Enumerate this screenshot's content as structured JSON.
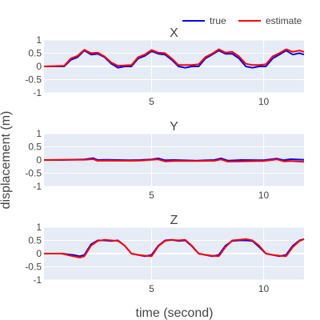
{
  "chart_data": {
    "type": "line",
    "xlabel": "time (second)",
    "ylabel": "displacement (m)",
    "xlim": [
      0.2,
      11.8
    ],
    "xticks": [
      5,
      10
    ],
    "ylim": [
      -1,
      1
    ],
    "yticks": [
      1,
      0.5,
      0,
      -0.5,
      -1
    ],
    "grid": true,
    "legend": {
      "placement": "top-right",
      "entries": [
        {
          "name": "true",
          "color": "#0000ff"
        },
        {
          "name": "estimate",
          "color": "#ff0000"
        }
      ]
    },
    "colors": {
      "true": "#0000ff",
      "estimate": "#ff0000",
      "plot_bg": "#e5ecf6"
    },
    "panels": [
      {
        "title": "X",
        "series": [
          {
            "name": "true",
            "x": [
              0.2,
              1.1,
              1.4,
              1.7,
              2.0,
              2.3,
              2.6,
              2.9,
              3.2,
              3.5,
              3.8,
              4.1,
              4.4,
              4.7,
              5.0,
              5.3,
              5.6,
              5.9,
              6.2,
              6.5,
              6.8,
              7.1,
              7.4,
              7.7,
              8.0,
              8.3,
              8.6,
              8.9,
              9.2,
              9.5,
              9.8,
              10.1,
              10.4,
              10.7,
              11.0,
              11.3,
              11.6,
              11.8
            ],
            "y": [
              0,
              0,
              0.25,
              0.35,
              0.6,
              0.45,
              0.48,
              0.35,
              0.1,
              -0.05,
              0,
              0,
              0.3,
              0.4,
              0.58,
              0.48,
              0.45,
              0.25,
              0,
              -0.05,
              0,
              0,
              0.3,
              0.45,
              0.6,
              0.48,
              0.48,
              0.3,
              0,
              -0.05,
              0,
              0,
              0.3,
              0.45,
              0.6,
              0.45,
              0.5,
              0.45
            ]
          },
          {
            "name": "estimate",
            "x": [
              0.2,
              1.1,
              1.4,
              1.7,
              2.0,
              2.3,
              2.6,
              2.9,
              3.2,
              3.5,
              3.8,
              4.1,
              4.4,
              4.7,
              5.0,
              5.3,
              5.6,
              5.9,
              6.2,
              6.5,
              6.8,
              7.1,
              7.4,
              7.7,
              8.0,
              8.3,
              8.6,
              8.9,
              9.2,
              9.5,
              9.8,
              10.1,
              10.4,
              10.7,
              11.0,
              11.3,
              11.6,
              11.8
            ],
            "y": [
              0,
              0.02,
              0.3,
              0.4,
              0.63,
              0.5,
              0.52,
              0.38,
              0.15,
              0.02,
              0.04,
              0.05,
              0.35,
              0.45,
              0.62,
              0.52,
              0.5,
              0.3,
              0.05,
              0.05,
              0.05,
              0.08,
              0.35,
              0.48,
              0.65,
              0.52,
              0.55,
              0.38,
              0.1,
              0.05,
              0.05,
              0.08,
              0.38,
              0.5,
              0.65,
              0.55,
              0.6,
              0.55
            ]
          }
        ]
      },
      {
        "title": "Y",
        "series": [
          {
            "name": "true",
            "x": [
              0.2,
              1.0,
              2.0,
              2.4,
              2.6,
              3.0,
              4.0,
              4.5,
              5.0,
              5.3,
              5.6,
              6.0,
              7.0,
              7.8,
              8.1,
              8.4,
              9.0,
              10.0,
              10.6,
              10.9,
              11.2,
              11.8
            ],
            "y": [
              0,
              0,
              0.02,
              0.07,
              0,
              0.01,
              -0.01,
              0,
              0.02,
              0.06,
              -0.01,
              0,
              -0.02,
              0,
              0.06,
              -0.02,
              0,
              -0.01,
              0.05,
              -0.01,
              0.03,
              0.01
            ]
          },
          {
            "name": "estimate",
            "x": [
              0.2,
              1.0,
              2.0,
              2.4,
              2.6,
              3.0,
              4.0,
              4.5,
              5.0,
              5.3,
              5.6,
              6.0,
              7.0,
              7.8,
              8.1,
              8.4,
              9.0,
              10.0,
              10.6,
              10.9,
              11.2,
              11.8
            ],
            "y": [
              0,
              0.01,
              0.01,
              0.03,
              -0.03,
              -0.02,
              -0.03,
              -0.02,
              0.01,
              0.02,
              -0.05,
              -0.04,
              -0.04,
              -0.03,
              0.02,
              -0.06,
              -0.05,
              -0.04,
              0.02,
              -0.05,
              -0.04,
              -0.07
            ]
          }
        ]
      },
      {
        "title": "Z",
        "series": [
          {
            "name": "true",
            "x": [
              0.2,
              1.0,
              1.5,
              1.8,
              2.0,
              2.3,
              2.6,
              2.9,
              3.2,
              3.5,
              3.8,
              4.1,
              4.4,
              4.7,
              5.0,
              5.3,
              5.6,
              5.9,
              6.2,
              6.5,
              6.8,
              7.1,
              7.4,
              7.7,
              8.0,
              8.3,
              8.6,
              8.9,
              9.2,
              9.5,
              9.8,
              10.1,
              10.4,
              10.7,
              11.0,
              11.3,
              11.6,
              11.8
            ],
            "y": [
              0,
              0,
              -0.05,
              -0.1,
              -0.05,
              0.35,
              0.5,
              0.5,
              0.48,
              0.5,
              0.3,
              0,
              -0.05,
              -0.1,
              -0.05,
              0.3,
              0.5,
              0.52,
              0.48,
              0.5,
              0.28,
              0,
              -0.05,
              -0.1,
              -0.05,
              0.3,
              0.48,
              0.5,
              0.5,
              0.48,
              0.25,
              0,
              -0.05,
              -0.1,
              -0.05,
              0.3,
              0.5,
              0.55
            ]
          },
          {
            "name": "estimate",
            "x": [
              0.2,
              1.0,
              1.5,
              1.8,
              2.0,
              2.3,
              2.6,
              2.9,
              3.2,
              3.5,
              3.8,
              4.1,
              4.4,
              4.7,
              5.0,
              5.3,
              5.6,
              5.9,
              6.2,
              6.5,
              6.8,
              7.1,
              7.4,
              7.7,
              8.0,
              8.3,
              8.6,
              8.9,
              9.2,
              9.5,
              9.8,
              10.1,
              10.4,
              10.7,
              11.0,
              11.3,
              11.6,
              11.8
            ],
            "y": [
              0,
              0,
              -0.1,
              -0.15,
              -0.1,
              0.3,
              0.48,
              0.52,
              0.5,
              0.48,
              0.3,
              0,
              -0.05,
              -0.08,
              -0.1,
              0.28,
              0.48,
              0.52,
              0.5,
              0.52,
              0.3,
              0,
              -0.05,
              -0.08,
              -0.1,
              0.25,
              0.5,
              0.52,
              0.55,
              0.5,
              0.3,
              0,
              -0.05,
              -0.08,
              -0.1,
              0.25,
              0.48,
              0.55
            ]
          }
        ]
      }
    ]
  }
}
